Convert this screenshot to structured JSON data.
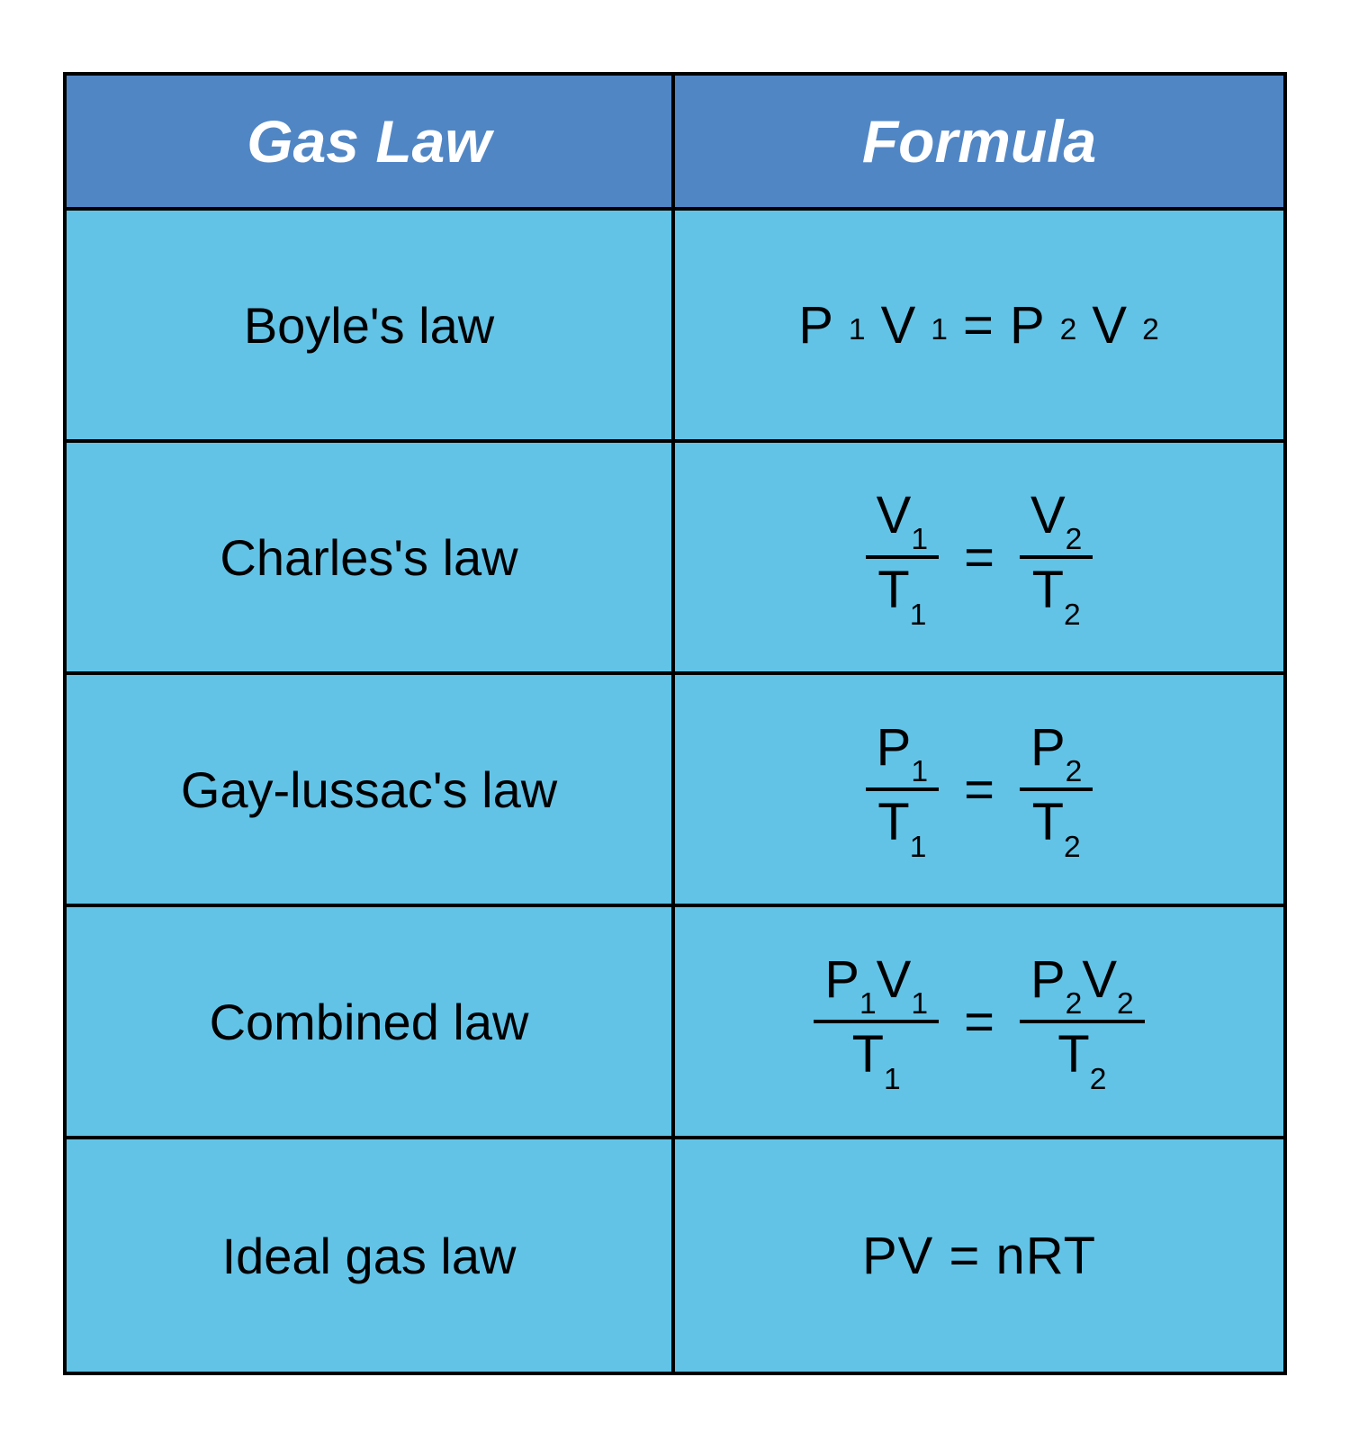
{
  "table": {
    "type": "table",
    "columns": [
      "Gas Law",
      "Formula"
    ],
    "header_background": "#5186c5",
    "header_text_color": "#ffffff",
    "header_font_style": "italic bold",
    "header_font_size": 66,
    "body_background": "#62c3e7",
    "body_text_color": "#000000",
    "border_color": "#000000",
    "border_width": 4,
    "law_name_font_size": 56,
    "formula_font_size": 58,
    "rows": [
      {
        "name": "Boyle's law",
        "formula_type": "simple",
        "formula_display": "P1V1 = P2V2",
        "left": {
          "terms": [
            {
              "var": "P",
              "sub": "1"
            },
            {
              "var": "V",
              "sub": "1"
            }
          ]
        },
        "right": {
          "terms": [
            {
              "var": "P",
              "sub": "2"
            },
            {
              "var": "V",
              "sub": "2"
            }
          ]
        }
      },
      {
        "name": "Charles's law",
        "formula_type": "fraction",
        "left": {
          "top": [
            {
              "var": "V",
              "sub": "1"
            }
          ],
          "bottom": [
            {
              "var": "T",
              "sub": "1"
            }
          ]
        },
        "right": {
          "top": [
            {
              "var": "V",
              "sub": "2"
            }
          ],
          "bottom": [
            {
              "var": "T",
              "sub": "2"
            }
          ]
        }
      },
      {
        "name": "Gay-lussac's law",
        "formula_type": "fraction",
        "left": {
          "top": [
            {
              "var": "P",
              "sub": "1"
            }
          ],
          "bottom": [
            {
              "var": "T",
              "sub": "1"
            }
          ]
        },
        "right": {
          "top": [
            {
              "var": "P",
              "sub": "2"
            }
          ],
          "bottom": [
            {
              "var": "T",
              "sub": "2"
            }
          ]
        }
      },
      {
        "name": "Combined law",
        "formula_type": "fraction",
        "left": {
          "top": [
            {
              "var": "P",
              "sub": "1"
            },
            {
              "var": "V",
              "sub": "1"
            }
          ],
          "bottom": [
            {
              "var": "T",
              "sub": "1"
            }
          ]
        },
        "right": {
          "top": [
            {
              "var": "P",
              "sub": "2"
            },
            {
              "var": "V",
              "sub": "2"
            }
          ],
          "bottom": [
            {
              "var": "T",
              "sub": "2"
            }
          ]
        }
      },
      {
        "name": "Ideal gas law",
        "formula_type": "plain",
        "formula_display": "PV = nRT"
      }
    ]
  }
}
